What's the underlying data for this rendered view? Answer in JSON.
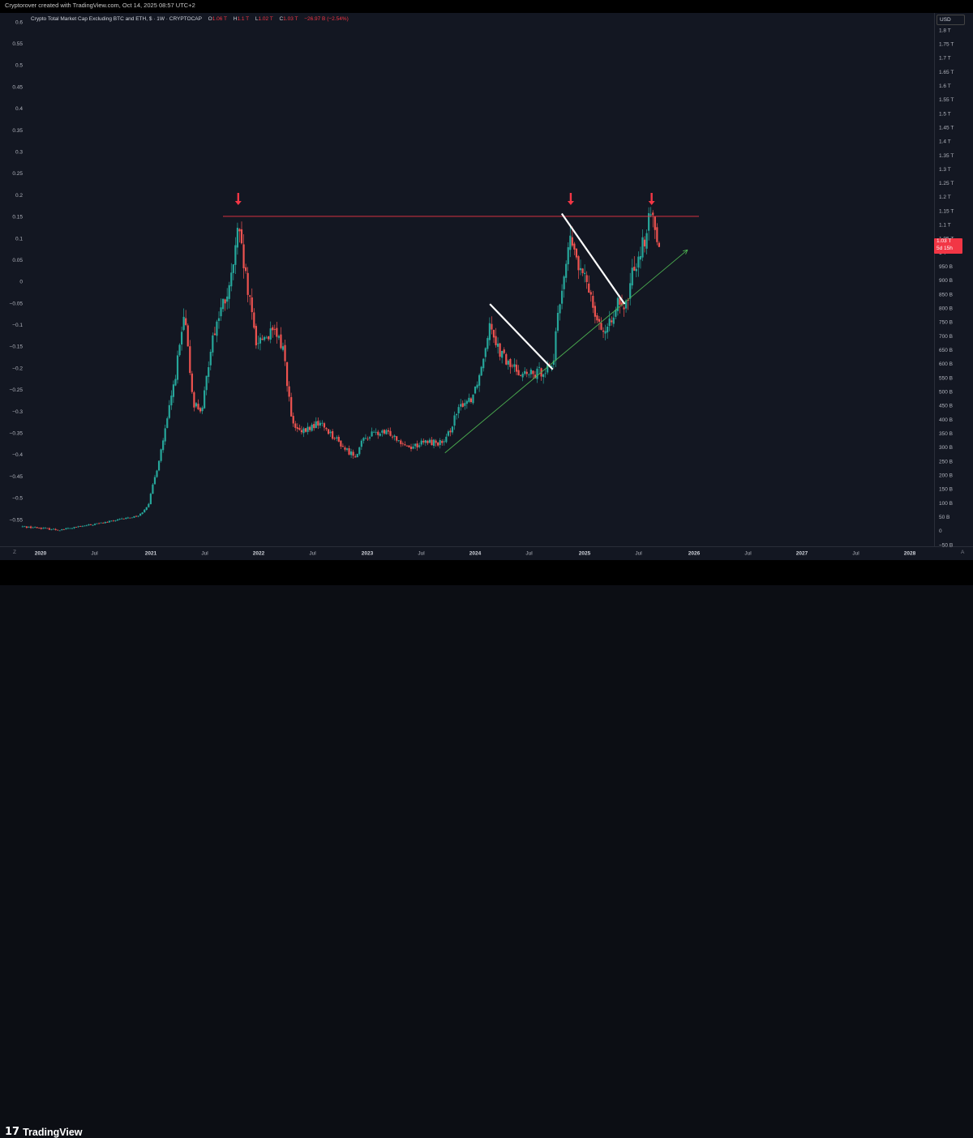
{
  "header": {
    "attribution": "Cryptorover created with TradingView.com, Oct 14, 2025 08:57 UTC+2"
  },
  "legend": {
    "title": "Crypto Total Market Cap Excluding BTC and ETH, $ · 1W · CRYPTOCAP",
    "o_label": "O",
    "o_value": "1.06 T",
    "h_label": "H",
    "h_value": "1.1 T",
    "l_label": "L",
    "l_value": "1.02 T",
    "c_label": "C",
    "c_value": "1.03 T",
    "change": "−26.97 B (−2.54%)"
  },
  "currency_button": "USD",
  "price_tag": {
    "price": "1.03 T",
    "countdown": "5d 15h"
  },
  "footer": {
    "brand_logo": "17",
    "brand_name": "TradingView"
  },
  "axis_corner_left": "Z",
  "axis_corner_right": "A",
  "colors": {
    "up": "#26a69a",
    "down": "#ef5350",
    "resistance": "#f23645",
    "support": "#4caf50",
    "trendline": "#ffffff",
    "background": "#131722"
  },
  "chart_data": {
    "type": "candlestick",
    "title": "Crypto Total Market Cap Excluding BTC and ETH, $ · 1W · CRYPTOCAP",
    "interval": "1W",
    "currency": "USD",
    "left_axis_ticks": [
      "0.6",
      "0.55",
      "0.5",
      "0.45",
      "0.4",
      "0.35",
      "0.3",
      "0.25",
      "0.2",
      "0.15",
      "0.1",
      "0.05",
      "0",
      "−0.05",
      "−0.1",
      "−0.15",
      "−0.2",
      "−0.25",
      "−0.3",
      "−0.35",
      "−0.4",
      "−0.45",
      "−0.5",
      "−0.55"
    ],
    "right_axis_ticks": [
      "1.8 T",
      "1.75 T",
      "1.7 T",
      "1.65 T",
      "1.6 T",
      "1.55 T",
      "1.5 T",
      "1.45 T",
      "1.4 T",
      "1.35 T",
      "1.3 T",
      "1.25 T",
      "1.2 T",
      "1.15 T",
      "1.1 T",
      "1.05 T",
      "1 T",
      "950 B",
      "900 B",
      "850 B",
      "800 B",
      "750 B",
      "700 B",
      "650 B",
      "600 B",
      "550 B",
      "500 B",
      "450 B",
      "400 B",
      "350 B",
      "300 B",
      "250 B",
      "200 B",
      "150 B",
      "100 B",
      "50 B",
      "0",
      "−50 B"
    ],
    "x_ticks": [
      {
        "label": "2020",
        "year": true
      },
      {
        "label": "Jul",
        "year": false
      },
      {
        "label": "2021",
        "year": true
      },
      {
        "label": "Jul",
        "year": false
      },
      {
        "label": "2022",
        "year": true
      },
      {
        "label": "Jul",
        "year": false
      },
      {
        "label": "2023",
        "year": true
      },
      {
        "label": "Jul",
        "year": false
      },
      {
        "label": "2024",
        "year": true
      },
      {
        "label": "Jul",
        "year": false
      },
      {
        "label": "2025",
        "year": true
      },
      {
        "label": "Jul",
        "year": false
      },
      {
        "label": "2026",
        "year": true
      },
      {
        "label": "Jul",
        "year": false
      },
      {
        "label": "2027",
        "year": true
      },
      {
        "label": "Jul",
        "year": false
      },
      {
        "label": "2028",
        "year": true
      }
    ],
    "x_range": [
      "2019-11",
      "2028-04"
    ],
    "y_range": [
      "−50 B",
      "1.8 T"
    ],
    "last": {
      "open": "1.06 T",
      "high": "1.1 T",
      "low": "1.02 T",
      "close": "1.03 T",
      "change": "−26.97 B (−2.54%)"
    },
    "path_keypoints_billion_usd": [
      [
        "2019-11",
        15
      ],
      [
        "2020-01",
        10
      ],
      [
        "2020-03",
        3
      ],
      [
        "2020-06",
        18
      ],
      [
        "2020-09",
        35
      ],
      [
        "2020-12",
        55
      ],
      [
        "2021-01",
        95
      ],
      [
        "2021-02",
        230
      ],
      [
        "2021-03",
        380
      ],
      [
        "2021-04",
        560
      ],
      [
        "2021-05",
        770
      ],
      [
        "2021-06",
        460
      ],
      [
        "2021-07",
        430
      ],
      [
        "2021-08",
        680
      ],
      [
        "2021-09",
        790
      ],
      [
        "2021-10",
        860
      ],
      [
        "2021-11",
        1080
      ],
      [
        "2021-12",
        870
      ],
      [
        "2022-01",
        680
      ],
      [
        "2022-02",
        700
      ],
      [
        "2022-03",
        710
      ],
      [
        "2022-04",
        660
      ],
      [
        "2022-05",
        380
      ],
      [
        "2022-06",
        350
      ],
      [
        "2022-08",
        390
      ],
      [
        "2022-09",
        360
      ],
      [
        "2022-11",
        290
      ],
      [
        "2022-12",
        270
      ],
      [
        "2023-01",
        330
      ],
      [
        "2023-02",
        350
      ],
      [
        "2023-04",
        350
      ],
      [
        "2023-06",
        300
      ],
      [
        "2023-08",
        320
      ],
      [
        "2023-10",
        315
      ],
      [
        "2023-11",
        400
      ],
      [
        "2023-12",
        460
      ],
      [
        "2024-01",
        480
      ],
      [
        "2024-02",
        580
      ],
      [
        "2024-03",
        760
      ],
      [
        "2024-04",
        650
      ],
      [
        "2024-05",
        600
      ],
      [
        "2024-07",
        560
      ],
      [
        "2024-08",
        560
      ],
      [
        "2024-10",
        600
      ],
      [
        "2024-11",
        880
      ],
      [
        "2024-12",
        1050
      ],
      [
        "2025-01",
        930
      ],
      [
        "2025-02",
        880
      ],
      [
        "2025-03",
        760
      ],
      [
        "2025-04",
        700
      ],
      [
        "2025-05",
        820
      ],
      [
        "2025-06",
        780
      ],
      [
        "2025-07",
        950
      ],
      [
        "2025-08",
        1030
      ],
      [
        "2025-09",
        1140
      ],
      [
        "2025-10",
        1030
      ]
    ],
    "annotations": [
      {
        "type": "horizontal_line",
        "level_billion_usd": 1130,
        "color": "#f23645"
      },
      {
        "type": "trendline",
        "color": "#4caf50",
        "from": [
          "2023-10",
          280
        ],
        "to": [
          "2026-01",
          1010
        ]
      },
      {
        "type": "trendline",
        "color": "#ffffff",
        "from": [
          "2024-03",
          815
        ],
        "to": [
          "2024-10",
          580
        ]
      },
      {
        "type": "trendline",
        "color": "#ffffff",
        "from": [
          "2024-11",
          1140
        ],
        "to": [
          "2025-06",
          815
        ]
      },
      {
        "type": "arrow_down",
        "at": "2021-11",
        "color": "#f23645"
      },
      {
        "type": "arrow_down",
        "at": "2024-12",
        "color": "#f23645"
      },
      {
        "type": "arrow_down",
        "at": "2025-09",
        "color": "#f23645"
      }
    ]
  }
}
